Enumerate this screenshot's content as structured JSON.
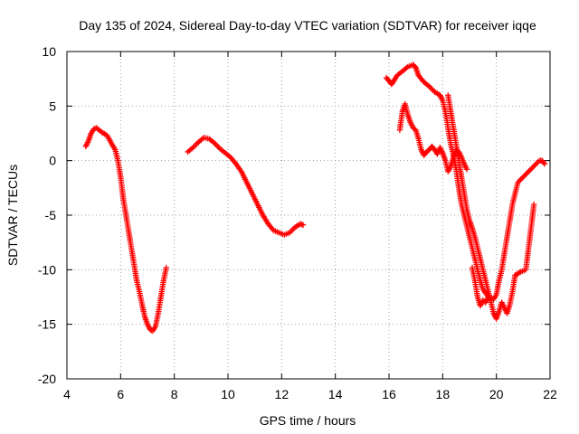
{
  "chart_data": {
    "type": "scatter",
    "title": "Day 135 of 2024, Sidereal Day-to-day VTEC variation (SDTVAR) for receiver iqqe",
    "xlabel": "GPS time / hours",
    "ylabel": "SDTVAR / TECUs",
    "xlim": [
      4,
      22
    ],
    "ylim": [
      -20,
      10
    ],
    "xticks": [
      "4",
      "6",
      "8",
      "10",
      "12",
      "14",
      "16",
      "18",
      "20",
      "22"
    ],
    "yticks": [
      "10",
      "5",
      "0",
      "-5",
      "-10",
      "-15",
      "-20"
    ],
    "grid": true,
    "marker": "plus",
    "color": "#ff0000",
    "series": [
      {
        "name": "SDTVAR",
        "segments": [
          [
            [
              4.7,
              1.3
            ],
            [
              4.8,
              1.8
            ],
            [
              4.9,
              2.5
            ],
            [
              5.0,
              2.9
            ],
            [
              5.1,
              3.0
            ],
            [
              5.2,
              2.8
            ],
            [
              5.3,
              2.6
            ],
            [
              5.5,
              2.3
            ],
            [
              5.7,
              1.4
            ],
            [
              5.8,
              1.0
            ],
            [
              5.9,
              0.0
            ],
            [
              6.0,
              -1.5
            ],
            [
              6.1,
              -3.5
            ],
            [
              6.2,
              -5.0
            ],
            [
              6.3,
              -6.5
            ],
            [
              6.4,
              -8.0
            ],
            [
              6.5,
              -9.5
            ],
            [
              6.6,
              -11.0
            ],
            [
              6.7,
              -12.0
            ],
            [
              6.8,
              -13.2
            ],
            [
              6.9,
              -14.3
            ],
            [
              7.0,
              -15.0
            ],
            [
              7.1,
              -15.5
            ],
            [
              7.2,
              -15.6
            ],
            [
              7.3,
              -15.2
            ],
            [
              7.4,
              -14.0
            ],
            [
              7.5,
              -12.5
            ],
            [
              7.6,
              -11.0
            ],
            [
              7.7,
              -9.8
            ]
          ],
          [
            [
              8.5,
              0.8
            ],
            [
              8.7,
              1.2
            ],
            [
              8.9,
              1.7
            ],
            [
              9.1,
              2.1
            ],
            [
              9.3,
              2.0
            ],
            [
              9.5,
              1.6
            ],
            [
              9.7,
              1.1
            ],
            [
              9.9,
              0.7
            ],
            [
              10.1,
              0.3
            ],
            [
              10.3,
              -0.3
            ],
            [
              10.5,
              -1.0
            ],
            [
              10.7,
              -2.0
            ],
            [
              10.9,
              -3.0
            ],
            [
              11.1,
              -4.0
            ],
            [
              11.3,
              -5.0
            ],
            [
              11.5,
              -5.8
            ],
            [
              11.7,
              -6.4
            ],
            [
              11.9,
              -6.6
            ],
            [
              12.1,
              -6.8
            ],
            [
              12.3,
              -6.6
            ],
            [
              12.5,
              -6.1
            ],
            [
              12.7,
              -5.8
            ],
            [
              12.8,
              -5.9
            ]
          ],
          [
            [
              15.9,
              7.6
            ],
            [
              16.0,
              7.3
            ],
            [
              16.1,
              7.0
            ],
            [
              16.3,
              7.8
            ],
            [
              16.5,
              8.2
            ],
            [
              16.7,
              8.6
            ],
            [
              16.9,
              8.8
            ],
            [
              17.0,
              8.5
            ],
            [
              17.1,
              7.8
            ],
            [
              17.3,
              7.2
            ],
            [
              17.5,
              6.8
            ],
            [
              17.7,
              6.3
            ],
            [
              17.9,
              6.0
            ],
            [
              18.0,
              5.5
            ],
            [
              18.1,
              4.5
            ],
            [
              18.2,
              3.0
            ],
            [
              18.3,
              1.5
            ],
            [
              18.4,
              0.5
            ],
            [
              18.5,
              -0.8
            ],
            [
              18.6,
              -2.5
            ],
            [
              18.7,
              -4.0
            ],
            [
              18.8,
              -5.0
            ],
            [
              18.9,
              -6.0
            ],
            [
              19.0,
              -7.0
            ],
            [
              19.1,
              -8.0
            ],
            [
              19.2,
              -9.0
            ],
            [
              19.3,
              -10.0
            ],
            [
              19.4,
              -11.0
            ],
            [
              19.5,
              -11.8
            ],
            [
              19.7,
              -12.5
            ],
            [
              19.9,
              -12.7
            ],
            [
              20.0,
              -12.3
            ],
            [
              20.1,
              -11.0
            ],
            [
              20.2,
              -10.0
            ],
            [
              20.3,
              -8.5
            ],
            [
              20.4,
              -7.0
            ],
            [
              20.5,
              -5.5
            ],
            [
              20.6,
              -4.0
            ],
            [
              20.7,
              -3.0
            ],
            [
              20.8,
              -2.0
            ],
            [
              21.0,
              -1.5
            ],
            [
              21.2,
              -1.0
            ],
            [
              21.4,
              -0.5
            ],
            [
              21.6,
              0.0
            ],
            [
              21.7,
              0.0
            ],
            [
              21.8,
              -0.3
            ]
          ],
          [
            [
              16.4,
              2.8
            ],
            [
              16.5,
              4.5
            ],
            [
              16.6,
              5.2
            ],
            [
              16.7,
              4.2
            ],
            [
              16.8,
              3.5
            ],
            [
              16.9,
              3.0
            ],
            [
              17.0,
              2.8
            ],
            [
              17.1,
              2.0
            ],
            [
              17.2,
              1.0
            ],
            [
              17.3,
              0.5
            ],
            [
              17.4,
              0.8
            ],
            [
              17.5,
              1.0
            ],
            [
              17.6,
              1.3
            ],
            [
              17.7,
              1.0
            ],
            [
              17.8,
              0.6
            ],
            [
              17.9,
              1.2
            ],
            [
              18.0,
              0.7
            ],
            [
              18.1,
              0.0
            ],
            [
              18.2,
              -1.0
            ],
            [
              18.3,
              -0.5
            ],
            [
              18.4,
              0.3
            ],
            [
              18.5,
              1.0
            ],
            [
              18.6,
              0.8
            ],
            [
              18.7,
              0.3
            ],
            [
              18.8,
              -0.3
            ],
            [
              18.9,
              -0.8
            ]
          ],
          [
            [
              18.2,
              6.0
            ],
            [
              18.3,
              4.5
            ],
            [
              18.4,
              3.0
            ],
            [
              18.5,
              1.5
            ],
            [
              18.6,
              0.0
            ],
            [
              18.7,
              -1.5
            ],
            [
              18.8,
              -3.0
            ],
            [
              18.9,
              -4.5
            ],
            [
              19.0,
              -5.5
            ],
            [
              19.1,
              -6.2
            ],
            [
              19.2,
              -7.0
            ],
            [
              19.3,
              -8.0
            ],
            [
              19.4,
              -9.0
            ],
            [
              19.5,
              -10.0
            ],
            [
              19.6,
              -11.0
            ],
            [
              19.7,
              -12.0
            ],
            [
              19.8,
              -13.0
            ],
            [
              19.9,
              -14.0
            ],
            [
              20.0,
              -14.5
            ],
            [
              20.1,
              -13.8
            ],
            [
              20.2,
              -13.0
            ],
            [
              20.3,
              -13.5
            ],
            [
              20.4,
              -14.0
            ],
            [
              20.5,
              -13.2
            ],
            [
              20.6,
              -12.0
            ],
            [
              20.7,
              -10.5
            ],
            [
              20.9,
              -10.2
            ],
            [
              21.1,
              -10.0
            ],
            [
              21.2,
              -8.0
            ],
            [
              21.3,
              -6.0
            ],
            [
              21.4,
              -4.0
            ]
          ],
          [
            [
              19.1,
              -9.8
            ],
            [
              19.2,
              -11.0
            ],
            [
              19.3,
              -12.5
            ],
            [
              19.4,
              -13.3
            ],
            [
              19.5,
              -12.8
            ],
            [
              19.6,
              -13.0
            ],
            [
              19.7,
              -12.5
            ]
          ]
        ]
      }
    ]
  }
}
